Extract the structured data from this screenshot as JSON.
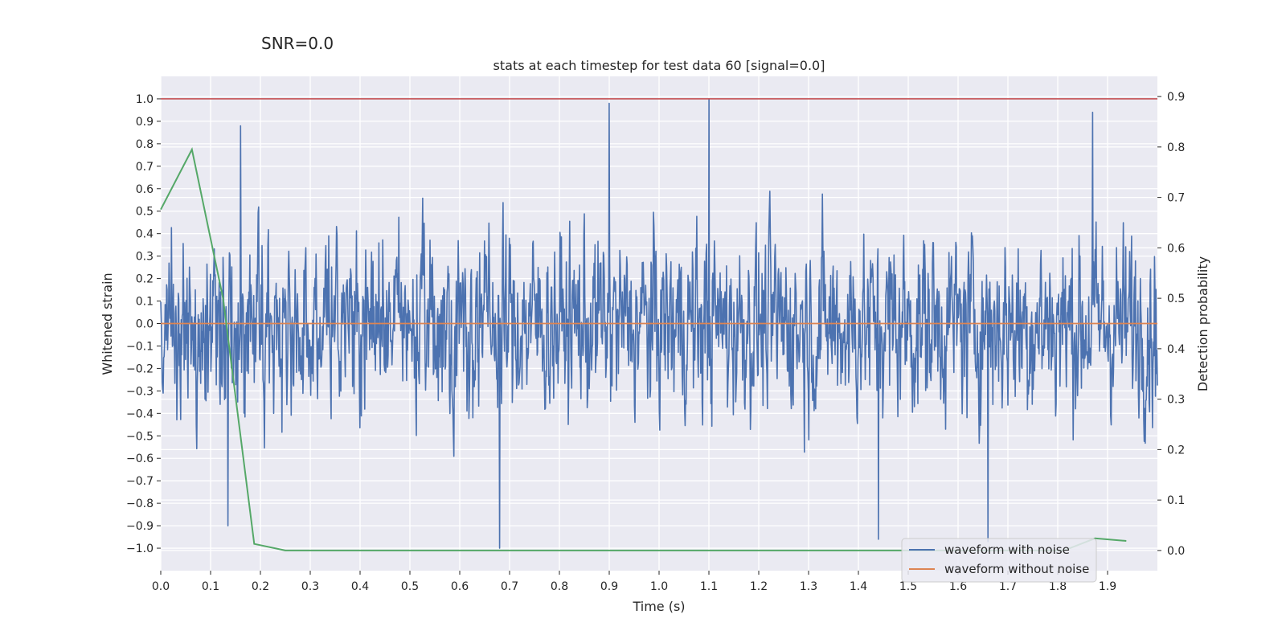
{
  "header": {
    "snr_label": "SNR=0.0"
  },
  "chart_data": {
    "type": "line",
    "title": "stats at each timestep for test data 60 [signal=0.0]",
    "xlabel": "Time (s)",
    "ylabel": "Whitened strain",
    "y2label": "Detection probability",
    "xlim": [
      0.0,
      2.0
    ],
    "ylim": [
      -1.1,
      1.1
    ],
    "y2lim": [
      -0.04,
      0.94
    ],
    "x_ticks": [
      "0.0",
      "0.1",
      "0.2",
      "0.3",
      "0.4",
      "0.5",
      "0.6",
      "0.7",
      "0.8",
      "0.9",
      "1.0",
      "1.1",
      "1.2",
      "1.3",
      "1.4",
      "1.5",
      "1.6",
      "1.7",
      "1.8",
      "1.9"
    ],
    "y_ticks": [
      "1.0",
      "0.9",
      "0.8",
      "0.7",
      "0.6",
      "0.5",
      "0.4",
      "0.3",
      "0.2",
      "0.1",
      "0.0",
      "−0.1",
      "−0.2",
      "−0.3",
      "−0.4",
      "−0.5",
      "−0.6",
      "−0.7",
      "−0.8",
      "−0.9",
      "−1.0"
    ],
    "y2_ticks": [
      "0.9",
      "0.8",
      "0.7",
      "0.6",
      "0.5",
      "0.4",
      "0.3",
      "0.2",
      "0.1",
      "0.0"
    ],
    "legend_position": "lower-right",
    "series": [
      {
        "name": "waveform with noise",
        "axis": "left",
        "color": "#4c72b0",
        "description": "whitened noise, 2048 samples over 0–2 s, range about −1.0 to 1.0",
        "sample_count": 2048,
        "x_range": [
          0.0,
          2.0
        ],
        "peaks": [
          {
            "x": 1.1,
            "y": 1.0
          },
          {
            "x": 0.9,
            "y": 0.98
          },
          {
            "x": 1.87,
            "y": 0.94
          },
          {
            "x": 0.16,
            "y": 0.88
          },
          {
            "x": 0.68,
            "y": -1.0
          },
          {
            "x": 1.44,
            "y": -0.96
          },
          {
            "x": 0.135,
            "y": -0.9
          },
          {
            "x": 1.66,
            "y": -0.97
          }
        ]
      },
      {
        "name": "waveform without noise",
        "axis": "left",
        "color": "#dd8452",
        "x": [
          0.0,
          2.0
        ],
        "y": [
          0.0,
          0.0
        ]
      },
      {
        "name": "detection probability",
        "axis": "right",
        "color": "#55a868",
        "x": [
          0.0,
          0.0625,
          0.125,
          0.1875,
          0.25,
          0.3125,
          0.375,
          0.4375,
          0.5,
          0.5625,
          0.625,
          0.6875,
          0.75,
          0.8125,
          0.875,
          0.9375,
          1.0,
          1.0625,
          1.125,
          1.1875,
          1.25,
          1.3125,
          1.375,
          1.4375,
          1.5,
          1.5625,
          1.625,
          1.6875,
          1.75,
          1.8125,
          1.875,
          1.9375
        ],
        "y": [
          0.676,
          0.795,
          0.5,
          0.013,
          0.0,
          0.0,
          0.0,
          0.0,
          0.0,
          0.0,
          0.0,
          0.0,
          0.0,
          0.0,
          0.0,
          0.0,
          0.0,
          0.0,
          0.0,
          0.0,
          0.0,
          0.0,
          0.0,
          0.0,
          0.0,
          0.0,
          0.0,
          0.0,
          0.0,
          0.0,
          0.024,
          0.019
        ]
      }
    ],
    "threshold": {
      "axis": "left",
      "value": 1.0,
      "color": "#c44e52"
    },
    "legend": [
      "waveform with noise",
      "waveform without noise"
    ]
  }
}
